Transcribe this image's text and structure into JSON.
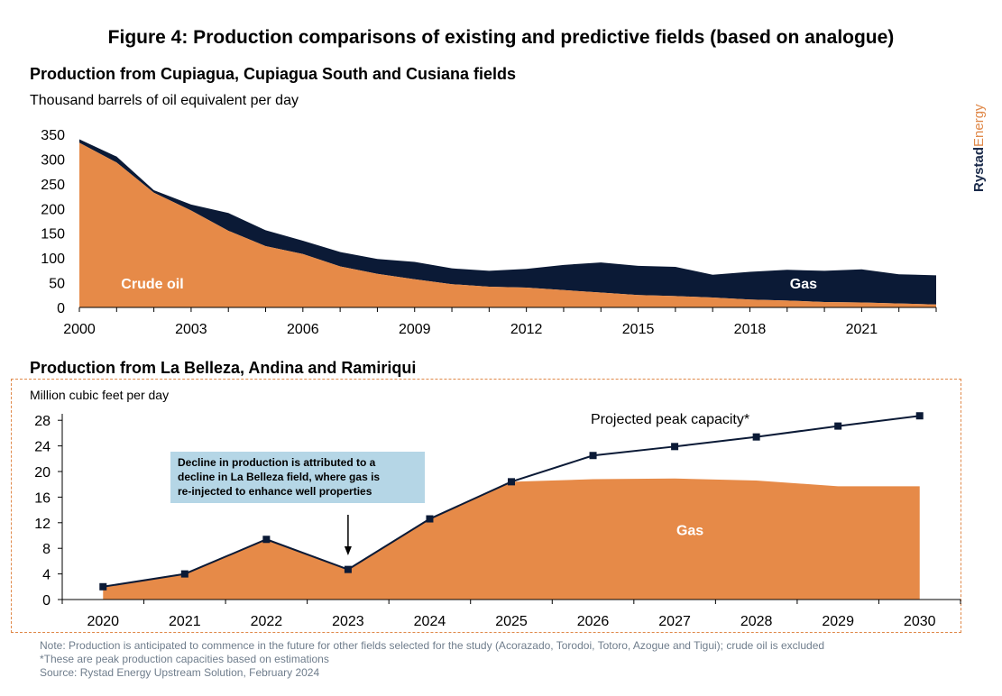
{
  "figure_title": "Figure 4: Production comparisons of existing and predictive fields (based on analogue)",
  "brand": {
    "part1": "Rystad",
    "part2": "Energy",
    "color1": "#1a2a4a",
    "color2": "#e0894a"
  },
  "colors": {
    "oil": "#e68a48",
    "gas_dark": "#0b1a36",
    "gas_orange": "#e68a48",
    "line": "#0b1a36",
    "axis": "#000000"
  },
  "notes": [
    "Note: Production is anticipated to commence in the future for other fields selected for the study (Acorazado, Torodoi, Totoro, Azogue and Tigui); crude oil is excluded",
    "*These are peak production capacities based on estimations",
    "Source: Rystad Energy Upstream Solution, February 2024"
  ],
  "chart_data": [
    {
      "type": "area",
      "stacked": true,
      "title": "Production from Cupiagua, Cupiagua South and Cusiana fields",
      "ylabel": "Thousand barrels of oil equivalent per day",
      "xlabel": "",
      "ylim": [
        0,
        350
      ],
      "yticks": [
        0,
        50,
        100,
        150,
        200,
        250,
        300,
        350
      ],
      "xlim": [
        2000,
        2023
      ],
      "xticks": [
        2000,
        2003,
        2006,
        2009,
        2012,
        2015,
        2018,
        2021
      ],
      "x": [
        2000,
        2001,
        2002,
        2003,
        2004,
        2005,
        2006,
        2007,
        2008,
        2009,
        2010,
        2011,
        2012,
        2013,
        2014,
        2015,
        2016,
        2017,
        2018,
        2019,
        2020,
        2021,
        2022,
        2023
      ],
      "series": [
        {
          "name": "Crude oil",
          "color": "#e68a48",
          "values": [
            333,
            293,
            232,
            196,
            155,
            124,
            108,
            83,
            68,
            57,
            47,
            42,
            40,
            35,
            30,
            25,
            23,
            20,
            16,
            14,
            11,
            10,
            8,
            6
          ]
        },
        {
          "name": "Gas",
          "color": "#0b1a36",
          "values": [
            7,
            12,
            5,
            12,
            36,
            32,
            27,
            29,
            30,
            35,
            32,
            32,
            38,
            51,
            61,
            59,
            59,
            46,
            56,
            62,
            63,
            67,
            59,
            59
          ]
        }
      ],
      "grid": false,
      "legend": "inline"
    },
    {
      "type": "area",
      "title": "Production from La Belleza, Andina and Ramiriqui",
      "ylabel": "Million cubic feet per day",
      "xlabel": "",
      "ylim": [
        0,
        30
      ],
      "yticks": [
        0,
        4,
        8,
        12,
        16,
        20,
        24,
        28
      ],
      "categories": [
        "2020",
        "2021",
        "2022",
        "2023",
        "2024",
        "2025",
        "2026",
        "2027",
        "2028",
        "2029",
        "2030"
      ],
      "series": [
        {
          "name": "Gas",
          "color": "#e68a48",
          "values": [
            2,
            4,
            9.4,
            4.7,
            12.6,
            18.4,
            18.8,
            18.9,
            18.6,
            17.7,
            17.7
          ]
        },
        {
          "name": "Projected peak capacity*",
          "color": "#0b1a36",
          "type": "line",
          "values": [
            2,
            4,
            9.4,
            4.7,
            12.6,
            18.4,
            22.5,
            23.9,
            25.4,
            27.1,
            28.7
          ]
        }
      ],
      "annotation": {
        "lines": [
          "Decline in production is attributed to a",
          "decline in La Belleza field, where gas is",
          "re-injected to enhance well properties"
        ],
        "arrow_to": "2023"
      },
      "grid": false,
      "legend": "inline"
    }
  ]
}
